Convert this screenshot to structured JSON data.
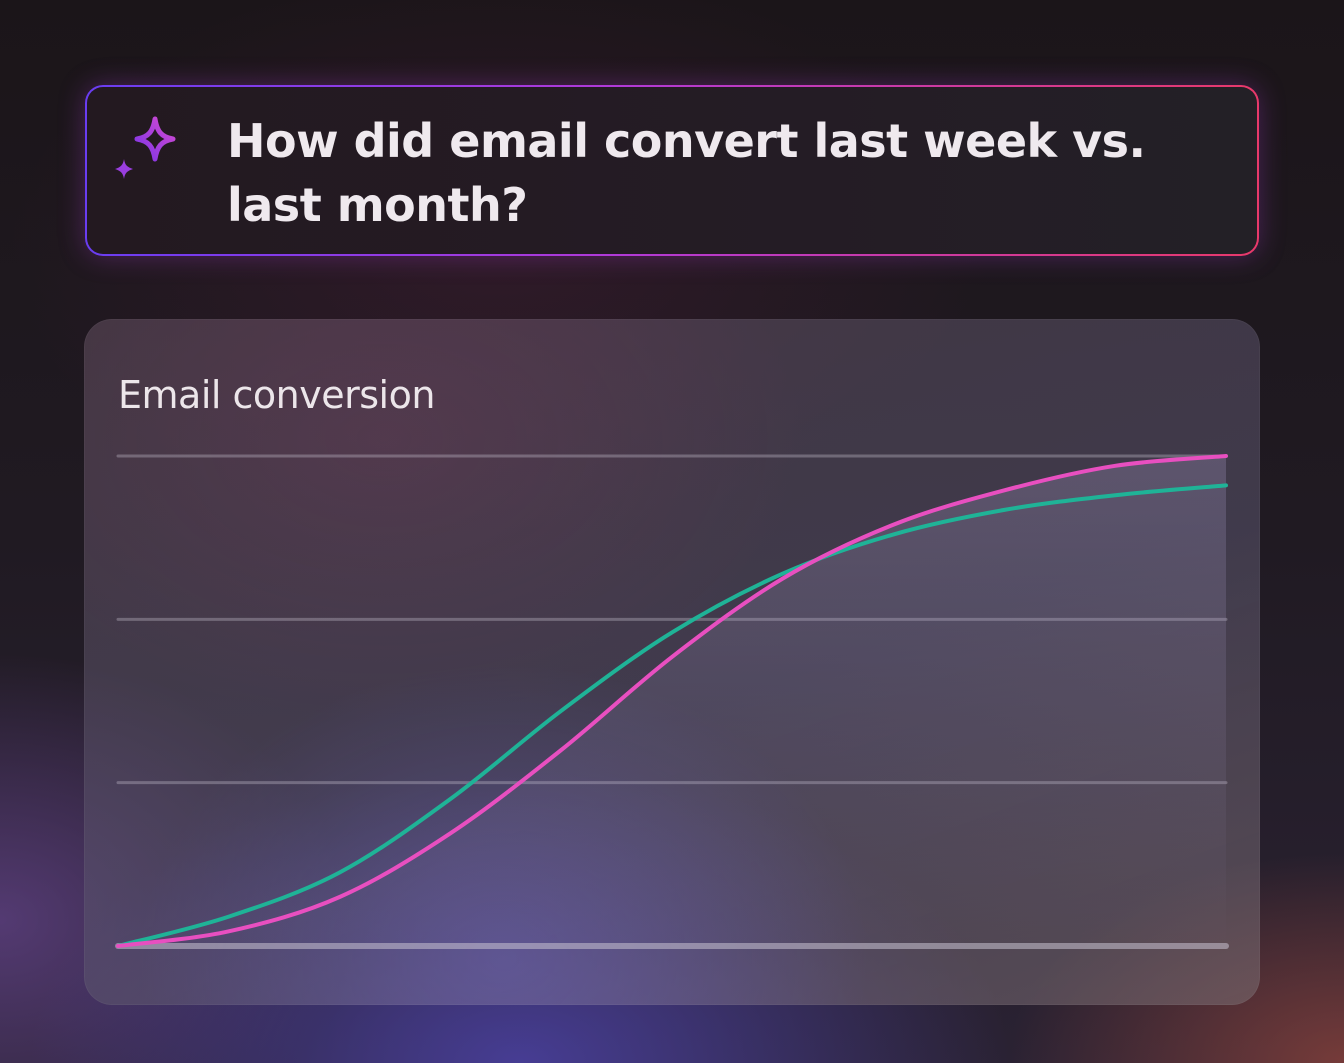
{
  "prompt": {
    "text": "How did email convert last week vs. last month?",
    "icon": "sparkle-icon",
    "border_colors": [
      "#6a3df2",
      "#b13ad8",
      "#e8396a"
    ]
  },
  "chart_data": {
    "type": "line",
    "title": "Email conversion",
    "xlabel": "",
    "ylabel": "",
    "grid": true,
    "gridlines": 4,
    "ylim": [
      0,
      1
    ],
    "xlim": [
      0,
      1
    ],
    "series": [
      {
        "color": "#1fb397",
        "points": [
          [
            0,
            0.0
          ],
          [
            0.1,
            0.06
          ],
          [
            0.2,
            0.15
          ],
          [
            0.3,
            0.3
          ],
          [
            0.4,
            0.48
          ],
          [
            0.5,
            0.64
          ],
          [
            0.6,
            0.76
          ],
          [
            0.7,
            0.84
          ],
          [
            0.8,
            0.89
          ],
          [
            0.9,
            0.92
          ],
          [
            1.0,
            0.94
          ]
        ]
      },
      {
        "color": "#e84fc0",
        "points": [
          [
            0,
            0.0
          ],
          [
            0.1,
            0.03
          ],
          [
            0.2,
            0.1
          ],
          [
            0.3,
            0.23
          ],
          [
            0.4,
            0.4
          ],
          [
            0.5,
            0.59
          ],
          [
            0.6,
            0.75
          ],
          [
            0.7,
            0.86
          ],
          [
            0.8,
            0.93
          ],
          [
            0.9,
            0.98
          ],
          [
            1.0,
            1.0
          ]
        ]
      }
    ]
  }
}
